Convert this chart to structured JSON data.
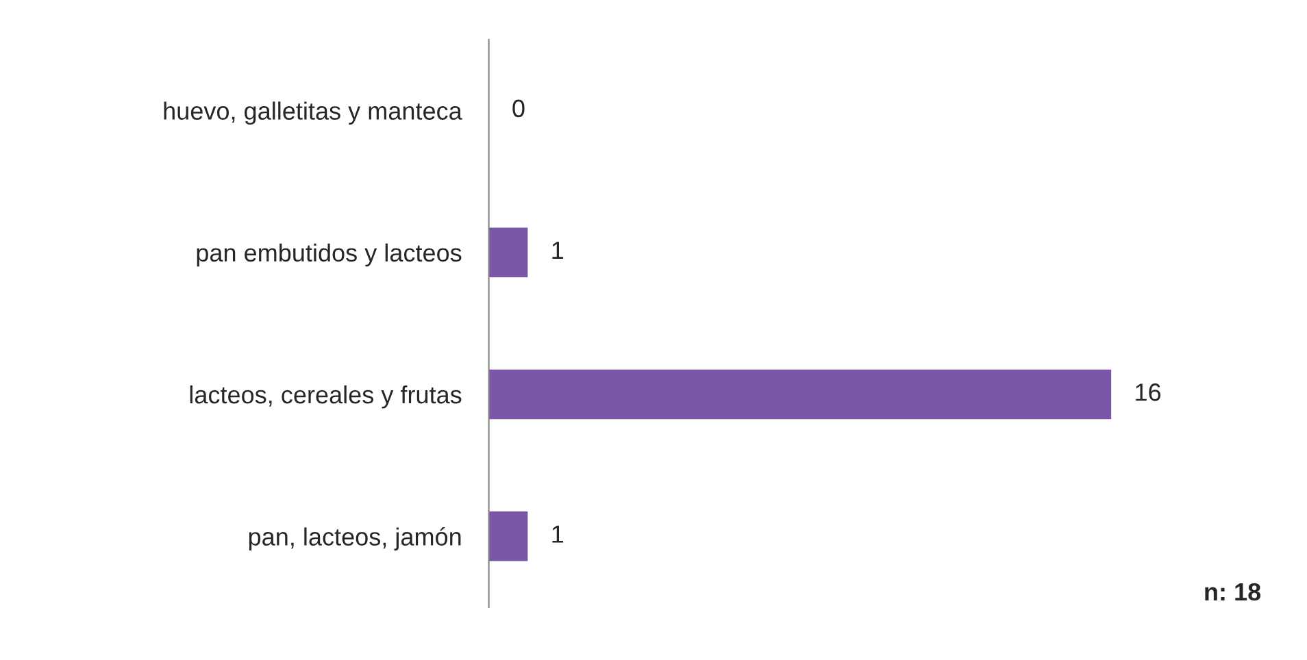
{
  "chart_data": {
    "type": "bar",
    "orientation": "horizontal",
    "categories": [
      "huevo, galletitas y manteca",
      "pan embutidos y lacteos",
      "lacteos, cereales y frutas",
      "pan, lacteos, jamón"
    ],
    "values": [
      0,
      1,
      16,
      1
    ],
    "color": "#7a56a8",
    "data_labels": true,
    "grid": false,
    "legend": false,
    "annotations": [
      "n: 18"
    ]
  }
}
